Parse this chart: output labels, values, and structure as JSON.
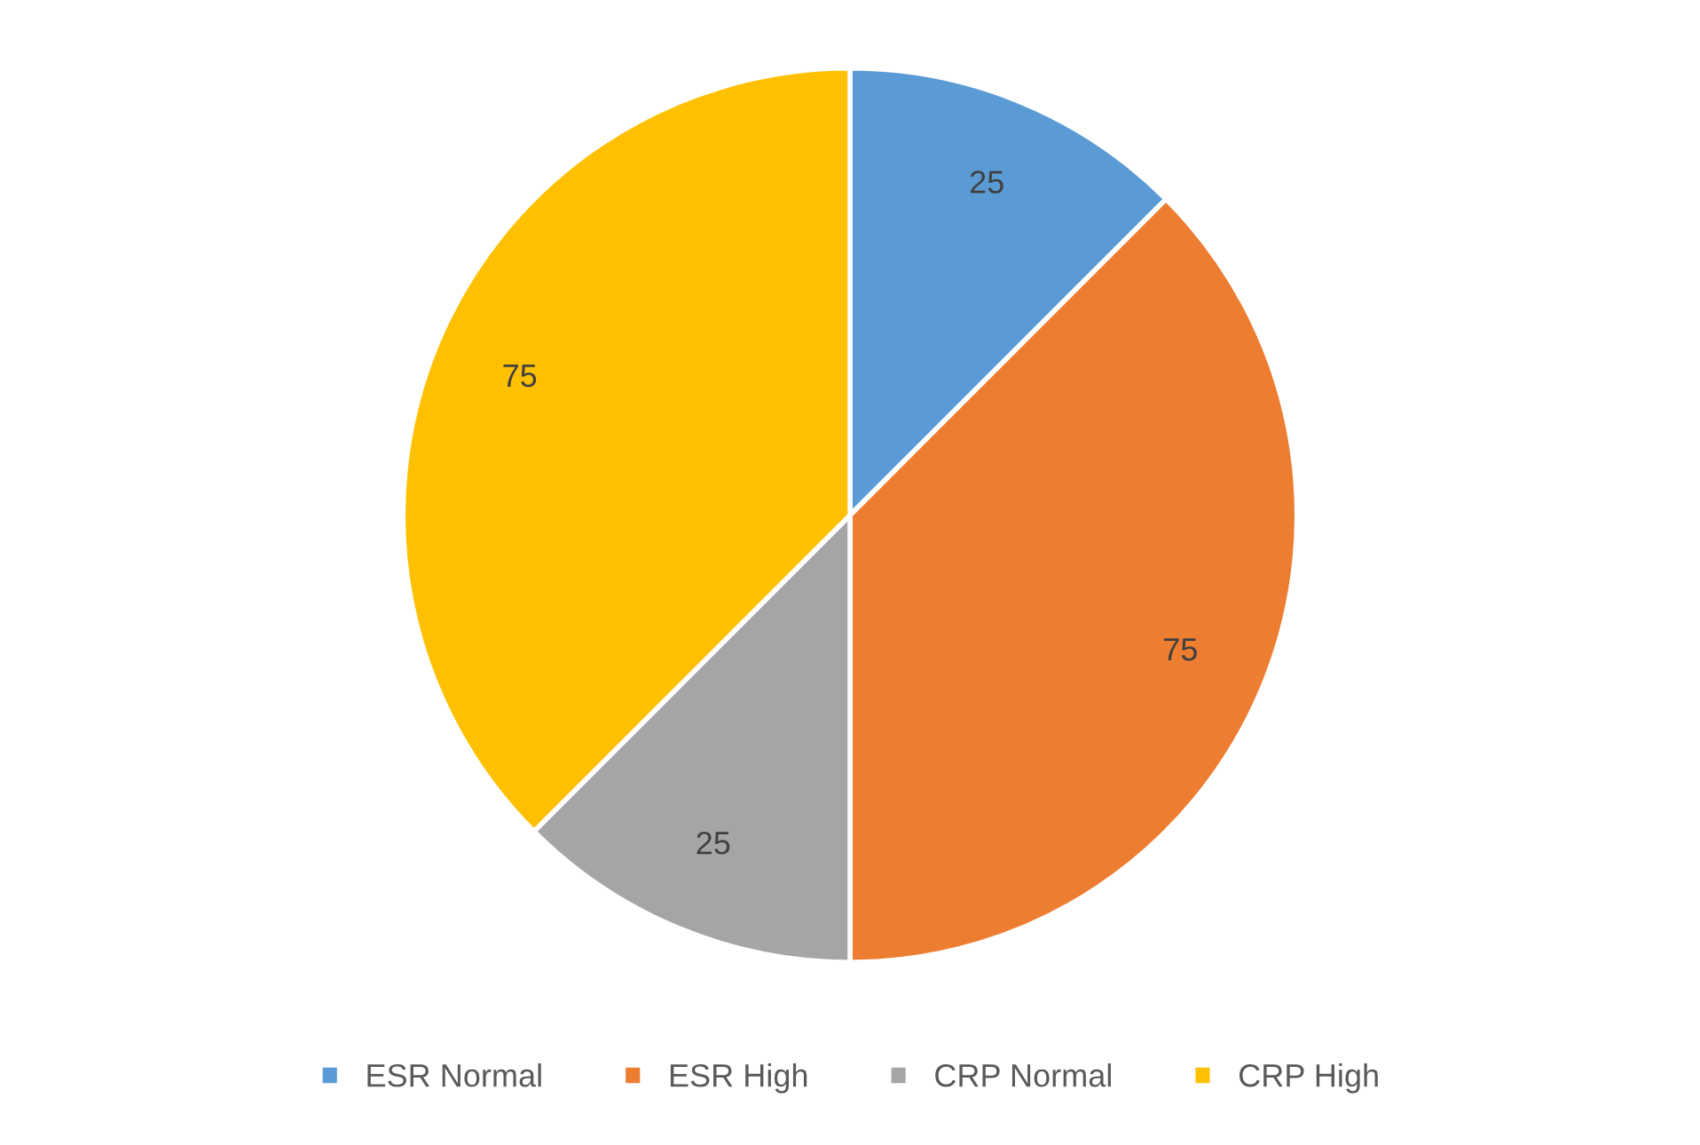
{
  "chart_data": {
    "type": "pie",
    "categories": [
      "ESR Normal",
      "ESR High",
      "CRP Normal",
      "CRP High"
    ],
    "values": [
      25,
      75,
      25,
      75
    ],
    "colors": [
      "#5b9bd5",
      "#ed7d31",
      "#a5a5a5",
      "#ffc000"
    ],
    "data_labels": true,
    "legend": "bottom"
  }
}
